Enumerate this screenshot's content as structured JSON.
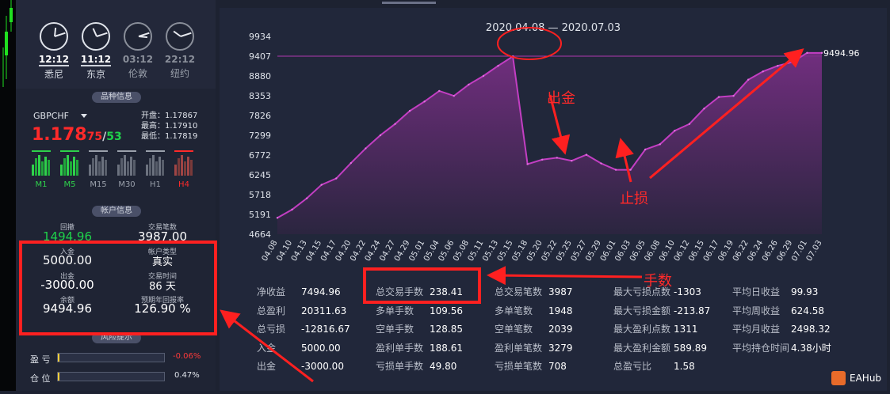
{
  "clocks": [
    {
      "time": "12:12",
      "city": "悉尼",
      "active": true,
      "h": 12,
      "m": 12
    },
    {
      "time": "11:12",
      "city": "东京",
      "active": true,
      "h": 11,
      "m": 12
    },
    {
      "time": "03:12",
      "city": "伦敦",
      "active": false,
      "h": 3,
      "m": 12
    },
    {
      "time": "22:12",
      "city": "纽约",
      "active": false,
      "h": 22,
      "m": 12
    }
  ],
  "symbol_section": {
    "title": "品种信息",
    "name": "GBPCHF",
    "price_main": "1.178",
    "price_bid_small": "75",
    "slash": "/",
    "price_ask_small": "53",
    "open": "开盘：1.17867",
    "high": "最高：1.17910",
    "low": "最低：1.17819",
    "timeframes": [
      "M1",
      "M5",
      "M15",
      "M30",
      "H1",
      "H4"
    ],
    "tf_colors": [
      "#2fd14b",
      "#2fd14b",
      "#9aa0ab",
      "#9aa0ab",
      "#9aa0ab",
      "#ff2a2a"
    ]
  },
  "account": {
    "title": "帐户信息",
    "drawdown_label": "回撤",
    "drawdown_value": "1494.96",
    "trades_label": "交易笔数",
    "trades_value": "3987.00",
    "deposit_label": "入金",
    "deposit_value": "5000.00",
    "account_type_label": "帐户类型",
    "account_type_value": "真实",
    "withdraw_label": "出金",
    "withdraw_value": "-3000.00",
    "trade_time_label": "交易时间",
    "trade_time_value": "86 天",
    "balance_label": "余额",
    "balance_value": "9494.96",
    "annual_label": "预期年回报率",
    "annual_value": "126.90 %"
  },
  "risk": {
    "title": "风险提示",
    "profit_label": "盈 亏",
    "profit_value": "-0.06%",
    "position_label": "仓 位",
    "position_value": "0.47%"
  },
  "chart_data": {
    "type": "area",
    "title": "2020.04.08 — 2020.07.03",
    "yticks": [
      4664,
      5191,
      5718,
      6245,
      6772,
      7299,
      7826,
      8353,
      8880,
      9407,
      9934
    ],
    "ylim": [
      4664,
      9934
    ],
    "x": [
      "04.08",
      "04.10",
      "04.13",
      "04.15",
      "04.17",
      "04.20",
      "04.22",
      "04.24",
      "04.27",
      "04.29",
      "05.01",
      "05.04",
      "05.06",
      "05.08",
      "05.11",
      "05.13",
      "05.15",
      "05.18",
      "05.20",
      "05.22",
      "05.25",
      "05.27",
      "05.29",
      "06.01",
      "06.03",
      "06.05",
      "06.08",
      "06.10",
      "06.12",
      "06.15",
      "06.17",
      "06.19",
      "06.22",
      "06.24",
      "06.26",
      "06.29",
      "07.01",
      "07.03"
    ],
    "values": [
      5100,
      5320,
      5620,
      5980,
      6150,
      6560,
      6950,
      7300,
      7600,
      7950,
      8200,
      8480,
      8350,
      8650,
      8880,
      9150,
      9400,
      6530,
      6650,
      6700,
      6620,
      6780,
      6550,
      6380,
      6380,
      6920,
      7060,
      7420,
      7600,
      8010,
      8320,
      8350,
      8780,
      9000,
      9150,
      9250,
      9495,
      9495
    ],
    "end_label": "9494.96",
    "ref_line": 9407,
    "grid": false
  },
  "annotations": {
    "withdraw": "出金",
    "stoploss": "止损",
    "fee": "手数"
  },
  "stats": [
    [
      {
        "l": "净收益",
        "v": "7494.96"
      },
      {
        "l": "总盈利",
        "v": "20311.63"
      },
      {
        "l": "总亏损",
        "v": "-12816.67"
      },
      {
        "l": "入金",
        "v": "5000.00"
      },
      {
        "l": "出金",
        "v": "-3000.00"
      }
    ],
    [
      {
        "l": "总交易手数",
        "v": "238.41"
      },
      {
        "l": "多单手数",
        "v": "109.56"
      },
      {
        "l": "空单手数",
        "v": "128.85"
      },
      {
        "l": "盈利单手数",
        "v": "188.61"
      },
      {
        "l": "亏损单手数",
        "v": "49.80"
      }
    ],
    [
      {
        "l": "总交易笔数",
        "v": "3987"
      },
      {
        "l": "多单笔数",
        "v": "1948"
      },
      {
        "l": "空单笔数",
        "v": "2039"
      },
      {
        "l": "盈利单笔数",
        "v": "3279"
      },
      {
        "l": "亏损单笔数",
        "v": "708"
      }
    ],
    [
      {
        "l": "最大亏损点数",
        "v": "-1303"
      },
      {
        "l": "最大亏损金额",
        "v": "-213.87"
      },
      {
        "l": "最大盈利点数",
        "v": "1311"
      },
      {
        "l": "最大盈利金额",
        "v": "589.89"
      },
      {
        "l": "总盈亏比",
        "v": "1.58"
      }
    ],
    [
      {
        "l": "平均日收益",
        "v": "99.93"
      },
      {
        "l": "平均周收益",
        "v": "624.58"
      },
      {
        "l": "平均月收益",
        "v": "2498.32"
      },
      {
        "l": "平均持仓时间",
        "v": "4.38小时"
      }
    ]
  ],
  "logo": "EAHub",
  "colors": {
    "accent": "#b83ab8",
    "fill": "#5a2a6a",
    "red": "#ff2020",
    "green": "#2fd14b"
  }
}
